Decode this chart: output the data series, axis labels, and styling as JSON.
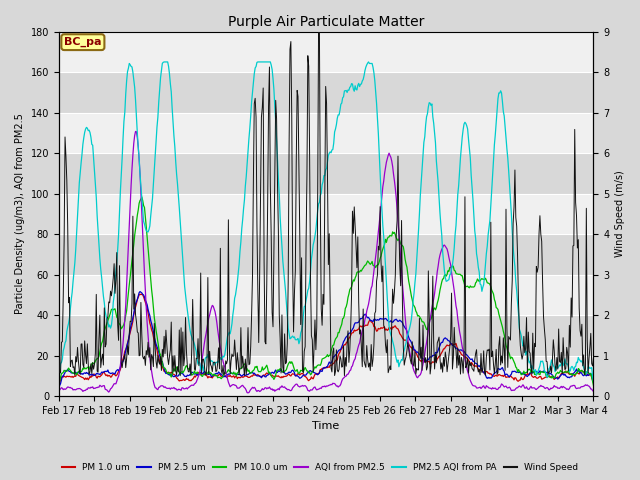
{
  "title": "Purple Air Particulate Matter",
  "xlabel": "Time",
  "ylabel_left": "Particle Density (ug/m3), AQI from PM2.5",
  "ylabel_right": "Wind Speed (m/s)",
  "ylim_left": [
    0,
    180
  ],
  "ylim_right": [
    0.0,
    9.0
  ],
  "yticks_left": [
    0,
    20,
    40,
    60,
    80,
    100,
    120,
    140,
    160,
    180
  ],
  "yticks_right": [
    0.0,
    1.0,
    2.0,
    3.0,
    4.0,
    5.0,
    6.0,
    7.0,
    8.0,
    9.0
  ],
  "annotation_text": "BC_pa",
  "annotation_facecolor": "#FFFF99",
  "annotation_edgecolor": "#8B6914",
  "annotation_textcolor": "#8B0000",
  "x_tick_labels": [
    "Feb 17",
    "Feb 18",
    "Feb 19",
    "Feb 20",
    "Feb 21",
    "Feb 22",
    "Feb 23",
    "Feb 24",
    "Feb 25",
    "Feb 26",
    "Feb 27",
    "Feb 28",
    "Mar 1",
    "Mar 2",
    "Mar 3",
    "Mar 4"
  ],
  "n_points": 600,
  "legend_entries": [
    "PM 1.0 um",
    "PM 2.5 um",
    "PM 10.0 um",
    "AQI from PM2.5",
    "PM2.5 AQI from PA",
    "Wind Speed"
  ],
  "legend_colors": [
    "#CC0000",
    "#0000CC",
    "#00BB00",
    "#9900CC",
    "#00CCCC",
    "#111111"
  ],
  "bg_color": "#D8D8D8",
  "plot_bg_color": "#DCDCDC",
  "band_color1": "#D8D8D8",
  "band_color2": "#F0F0F0",
  "grid_color": "#FFFFFF",
  "figsize": [
    6.4,
    4.8
  ],
  "dpi": 100
}
